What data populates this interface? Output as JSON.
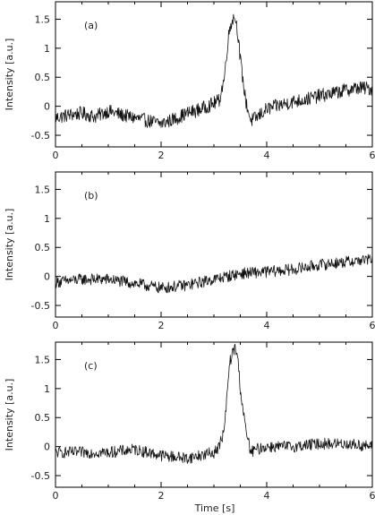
{
  "figure": {
    "xlabel": "Time [s]",
    "ylabel": "Intensity [a.u.]"
  },
  "chart_data": [
    {
      "type": "line",
      "panel_label": "(a)",
      "xlabel": "",
      "ylabel": "Intensity [a.u.]",
      "xlim": [
        0,
        6
      ],
      "ylim": [
        -0.7,
        1.8
      ],
      "xticks": [
        0,
        2,
        4,
        6
      ],
      "yticks": [
        -0.5,
        0,
        0.5,
        1,
        1.5
      ],
      "xtick_labels": [
        "0",
        "2",
        "4",
        "6"
      ],
      "ytick_labels": [
        "-0.5",
        "0",
        "0.5",
        "1",
        "1.5"
      ],
      "grid": false,
      "series": [
        {
          "x": [
            0.0,
            0.25,
            0.5,
            0.75,
            1.0,
            1.25,
            1.5,
            1.75,
            2.0,
            2.25,
            2.5,
            2.75,
            3.0,
            3.1,
            3.2,
            3.25,
            3.3,
            3.35,
            3.4,
            3.45,
            3.5,
            3.6,
            3.7,
            3.8,
            4.0,
            4.25,
            4.5,
            4.75,
            5.0,
            5.25,
            5.5,
            5.75,
            6.0
          ],
          "values": [
            -0.2,
            -0.15,
            -0.12,
            -0.18,
            -0.08,
            -0.15,
            -0.2,
            -0.25,
            -0.3,
            -0.22,
            -0.12,
            -0.05,
            0.05,
            0.1,
            0.5,
            1.0,
            1.35,
            1.5,
            1.55,
            1.3,
            0.8,
            0.1,
            -0.25,
            -0.2,
            -0.05,
            0.02,
            0.08,
            0.12,
            0.18,
            0.22,
            0.28,
            0.32,
            0.3
          ],
          "noise": 0.12
        }
      ]
    },
    {
      "type": "line",
      "panel_label": "(b)",
      "xlabel": "",
      "ylabel": "Intensity [a.u.]",
      "xlim": [
        0,
        6
      ],
      "ylim": [
        -0.7,
        1.8
      ],
      "xticks": [
        0,
        2,
        4,
        6
      ],
      "yticks": [
        -0.5,
        0,
        0.5,
        1,
        1.5
      ],
      "xtick_labels": [
        "0",
        "2",
        "4",
        "6"
      ],
      "ytick_labels": [
        "-0.5",
        "0",
        "0.5",
        "1",
        "1.5"
      ],
      "grid": false,
      "series": [
        {
          "x": [
            0.0,
            0.5,
            1.0,
            1.5,
            2.0,
            2.5,
            3.0,
            3.5,
            4.0,
            4.5,
            5.0,
            5.5,
            6.0
          ],
          "values": [
            -0.1,
            -0.05,
            -0.05,
            -0.12,
            -0.2,
            -0.15,
            -0.05,
            0.05,
            0.08,
            0.12,
            0.2,
            0.25,
            0.3
          ],
          "noise": 0.1
        }
      ]
    },
    {
      "type": "line",
      "panel_label": "(c)",
      "xlabel": "Time [s]",
      "ylabel": "Intensity [a.u.]",
      "xlim": [
        0,
        6
      ],
      "ylim": [
        -0.7,
        1.8
      ],
      "xticks": [
        0,
        2,
        4,
        6
      ],
      "yticks": [
        -0.5,
        0,
        0.5,
        1,
        1.5
      ],
      "xtick_labels": [
        "0",
        "2",
        "4",
        "6"
      ],
      "ytick_labels": [
        "-0.5",
        "0",
        "0.5",
        "1",
        "1.5"
      ],
      "grid": false,
      "series": [
        {
          "x": [
            0.0,
            0.5,
            1.0,
            1.5,
            2.0,
            2.5,
            3.0,
            3.1,
            3.2,
            3.25,
            3.3,
            3.35,
            3.4,
            3.45,
            3.5,
            3.6,
            3.7,
            3.8,
            4.0,
            4.5,
            5.0,
            5.5,
            6.0
          ],
          "values": [
            -0.1,
            -0.1,
            -0.1,
            -0.05,
            -0.15,
            -0.2,
            -0.1,
            0.0,
            0.3,
            0.9,
            1.45,
            1.6,
            1.7,
            1.55,
            1.0,
            0.3,
            -0.1,
            -0.05,
            0.0,
            0.0,
            0.05,
            0.05,
            0.0
          ],
          "noise": 0.1
        }
      ]
    }
  ]
}
